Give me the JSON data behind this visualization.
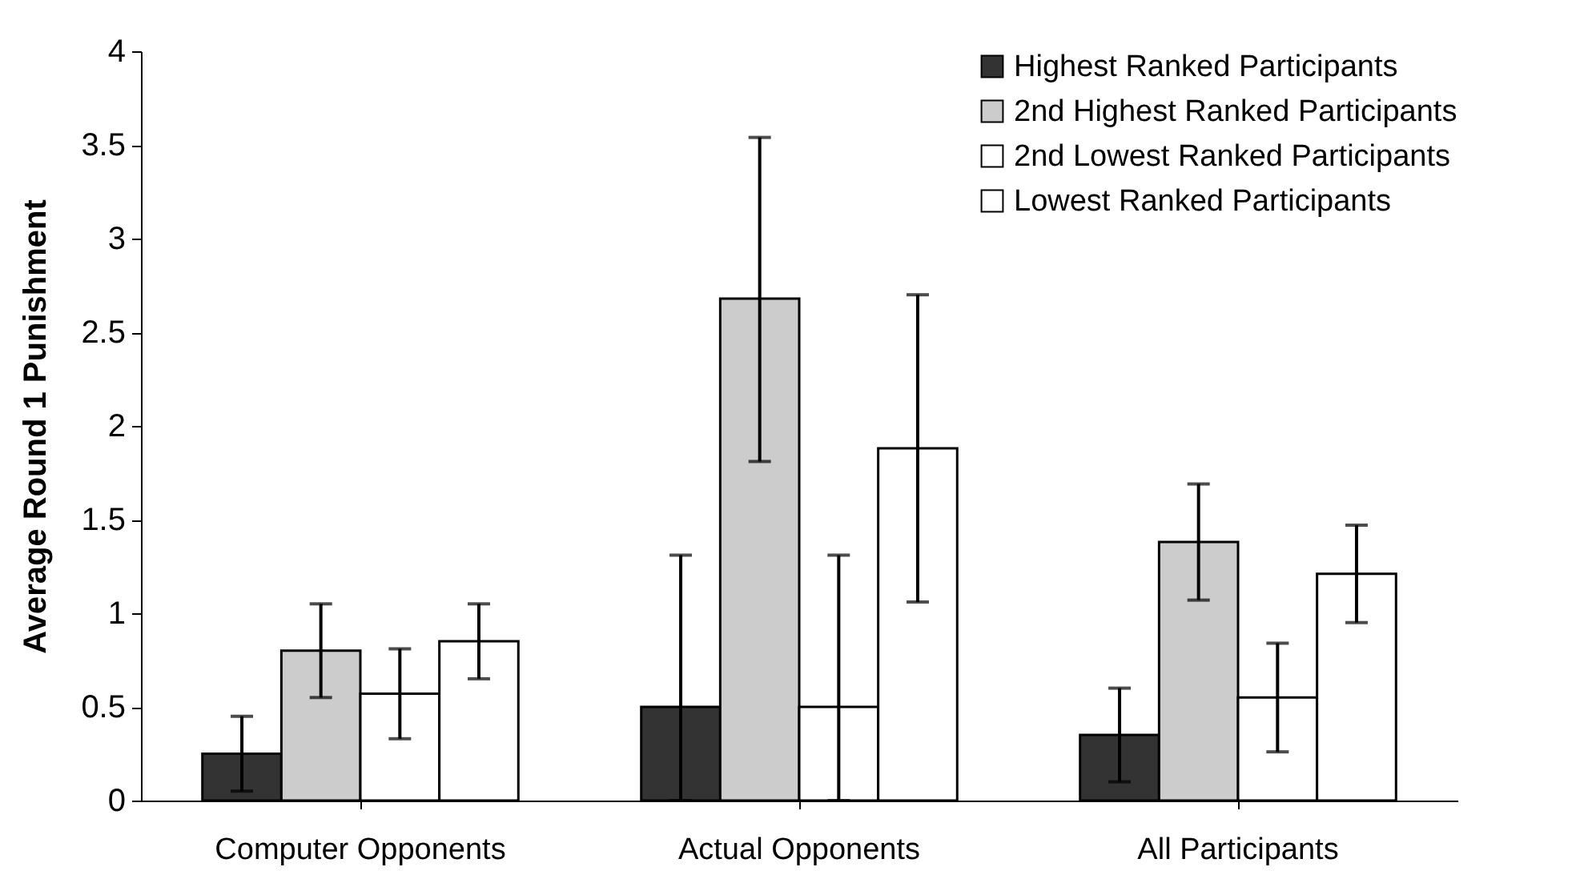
{
  "chart_data": {
    "type": "bar",
    "ylabel": "Average Round 1 Punishment",
    "categories": [
      "Computer Opponents",
      "Actual Opponents",
      "All Participants"
    ],
    "series": [
      {
        "name": "Highest Ranked Participants",
        "color": "#333333",
        "values": [
          0.25,
          0.5,
          0.35
        ],
        "errors": [
          0.2,
          [
            0,
            1.31
          ],
          0.25
        ]
      },
      {
        "name": "2nd Highest Ranked Participants",
        "color": "#cccccc",
        "values": [
          0.8,
          2.68,
          1.38
        ],
        "errors": [
          0.25,
          [
            1.81,
            3.54
          ],
          0.31
        ]
      },
      {
        "name": "2nd Lowest Ranked Participants",
        "color": "#ffffff",
        "values": [
          0.57,
          0.5,
          0.55
        ],
        "errors": [
          0.24,
          [
            0,
            1.31
          ],
          0.29
        ]
      },
      {
        "name": "Lowest Ranked Participants",
        "color": "#ffffff",
        "values": [
          0.85,
          1.88,
          1.21
        ],
        "errors": [
          0.2,
          [
            1.06,
            2.7
          ],
          0.26
        ]
      }
    ],
    "ylim": [
      0,
      4
    ],
    "yticks": [
      0,
      0.5,
      1,
      1.5,
      2,
      2.5,
      3,
      3.5,
      4
    ],
    "grid": false,
    "legend": "top right"
  }
}
